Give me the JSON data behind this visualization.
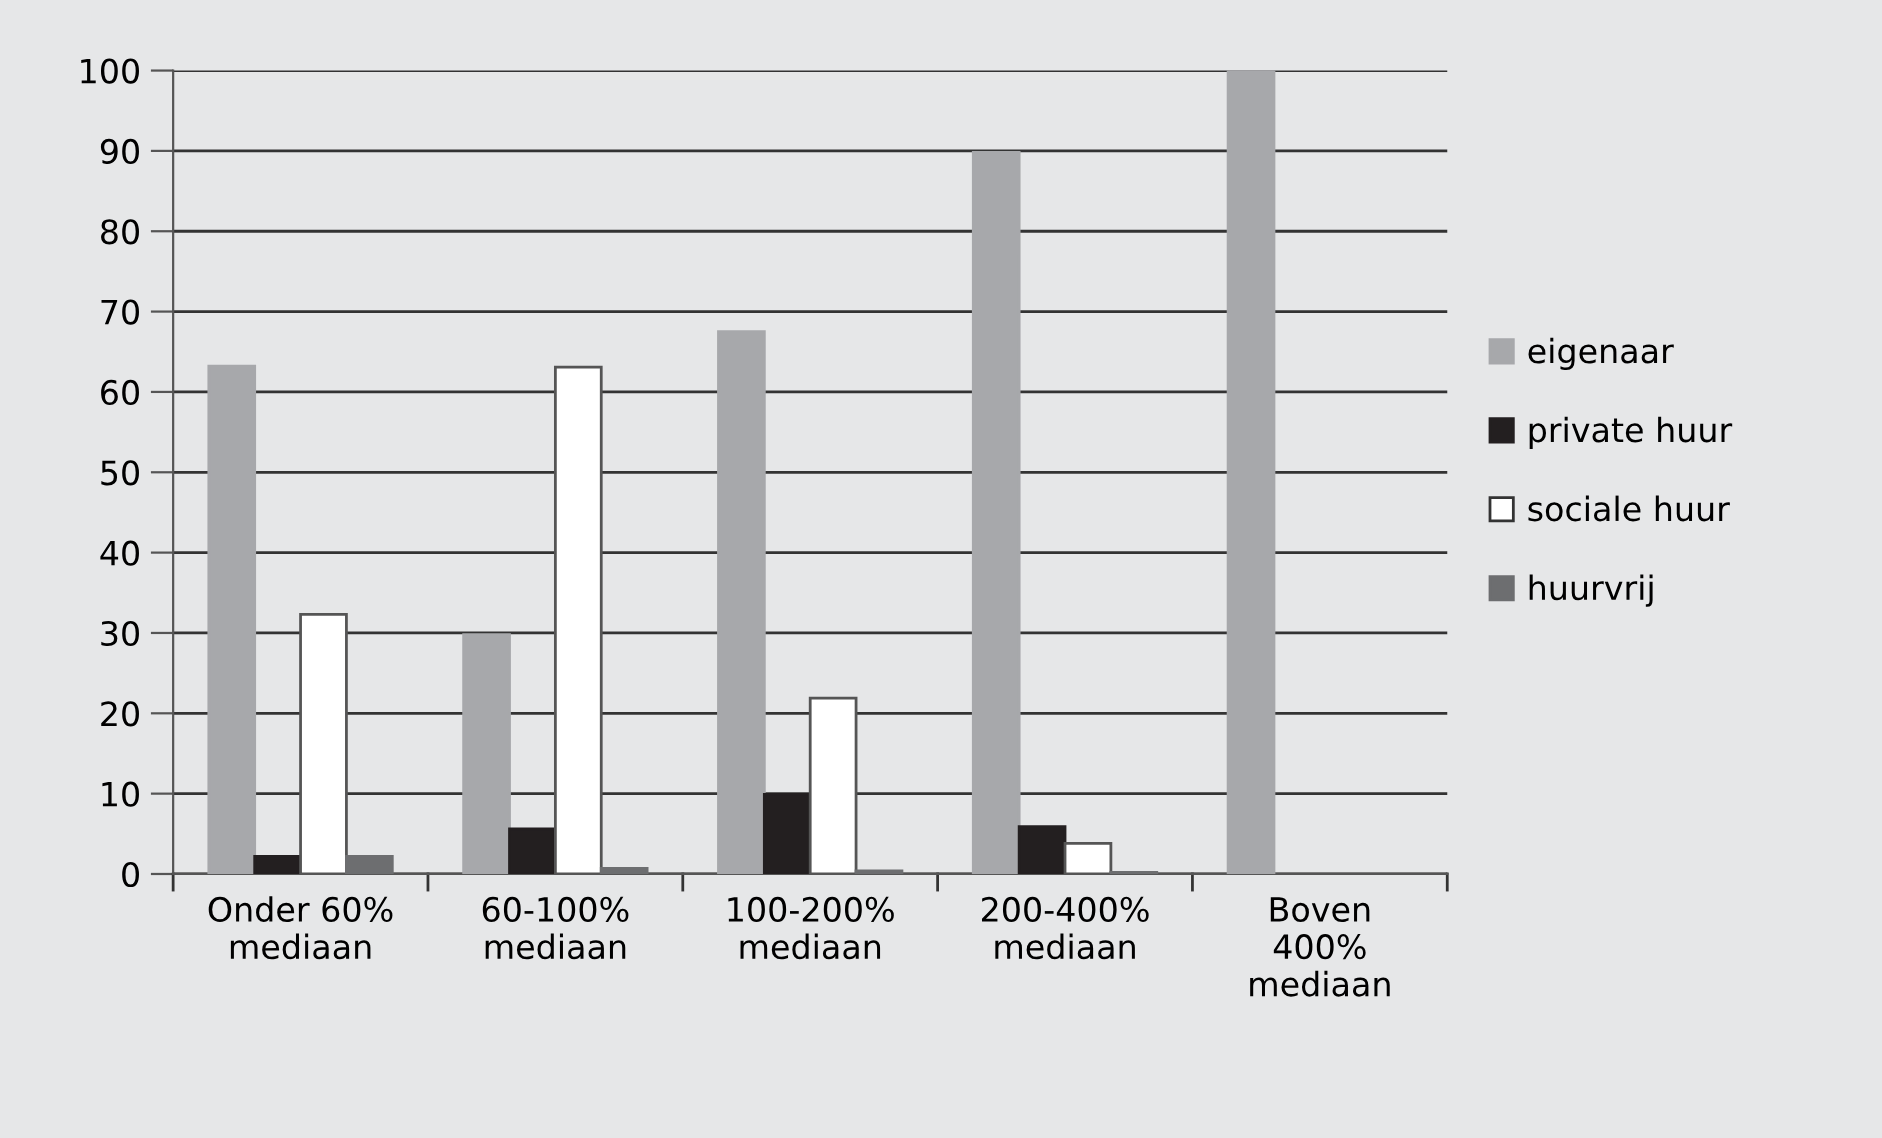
{
  "chart_data": {
    "type": "bar",
    "categories": [
      "Onder 60%\nmediaan",
      "60-100%\nmediaan",
      "100-200%\nmediaan",
      "200-400%\nmediaan",
      "Boven\n400%\nmediaan"
    ],
    "series": [
      {
        "name": "eigenaar",
        "color": "#a7a8ab",
        "values": [
          63.2,
          29.8,
          67.5,
          89.8,
          100
        ]
      },
      {
        "name": "private huur",
        "color": "#231f20",
        "values": [
          2.2,
          5.6,
          9.9,
          5.9,
          null
        ]
      },
      {
        "name": "sociale huur",
        "color": "#ffffff",
        "values": [
          32.3,
          63.1,
          21.9,
          3.8,
          null
        ]
      },
      {
        "name": "huurvrij",
        "color": "#6d6e70",
        "values": [
          2.2,
          0.7,
          0.4,
          0.2,
          null
        ]
      }
    ],
    "ylim": [
      0,
      100
    ],
    "yticks": [
      0,
      10,
      20,
      30,
      40,
      50,
      60,
      70,
      80,
      90,
      100
    ],
    "grid": "y",
    "legend": "right"
  }
}
